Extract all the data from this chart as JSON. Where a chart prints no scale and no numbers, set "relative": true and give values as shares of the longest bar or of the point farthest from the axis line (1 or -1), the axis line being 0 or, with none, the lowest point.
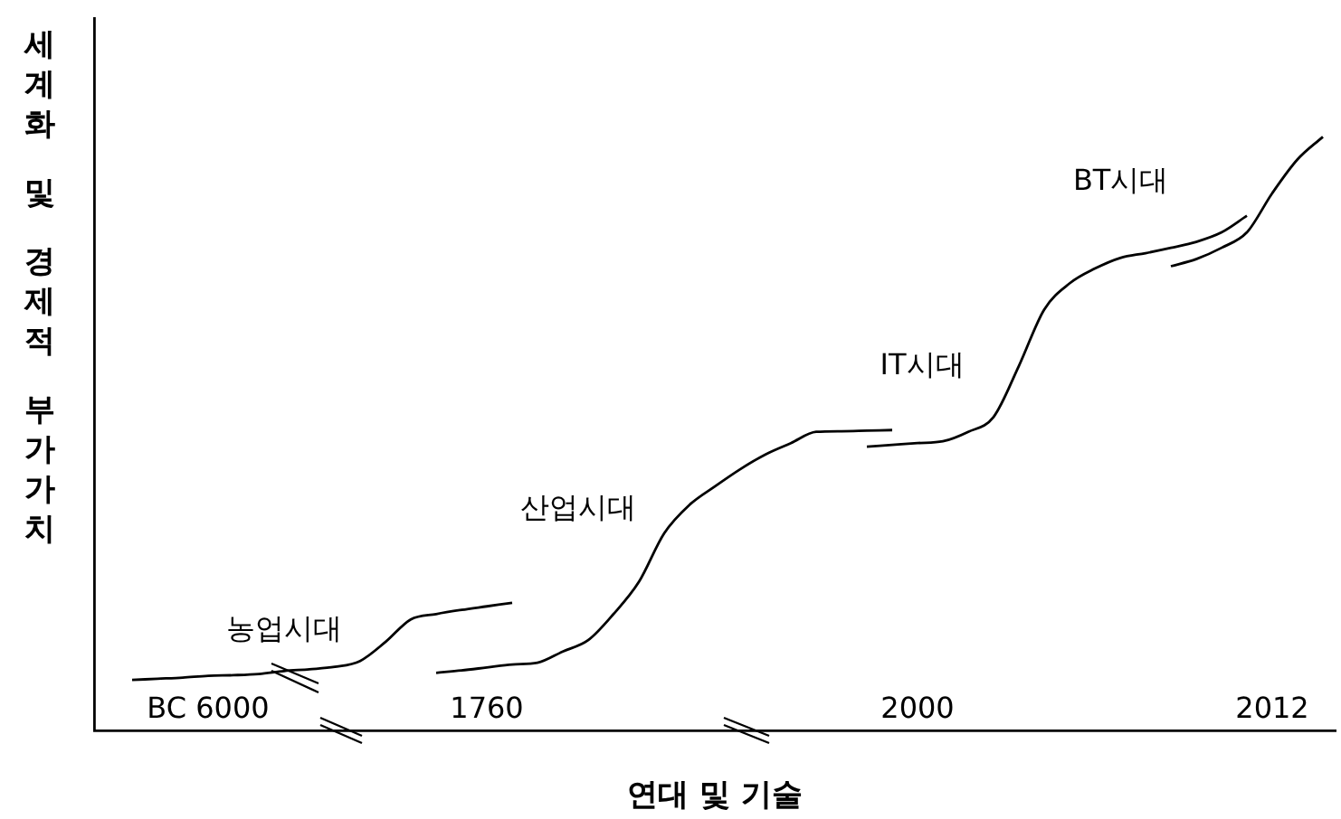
{
  "chart_data": {
    "type": "line",
    "relative": true,
    "xlabel": "연대 및 기술",
    "ylabel": "세계화 및 경제적 부가가치",
    "categories": [
      null,
      null,
      null,
      null,
      "BC 6000",
      null,
      null,
      null,
      null,
      null,
      null,
      null,
      null,
      null,
      null,
      "1760",
      null,
      null,
      null,
      null,
      null,
      null,
      null,
      null,
      null,
      null,
      null,
      null,
      null,
      null,
      null,
      null,
      "2000",
      null,
      null,
      null,
      null,
      null,
      null,
      null,
      null,
      null,
      null,
      null,
      null,
      null,
      "2012",
      null,
      null
    ],
    "series": [
      {
        "color": "#000000",
        "values": [
          null,
          0.085,
          0.087,
          0.089,
          0.092,
          0.093,
          0.095,
          0.1,
          0.103,
          0.107,
          0.117,
          0.149,
          0.187,
          0.196,
          0.203,
          0.209,
          0.215,
          null,
          null,
          null,
          null,
          null,
          null,
          null,
          null,
          null,
          null,
          null,
          null,
          null,
          null,
          null,
          null,
          null,
          null,
          null,
          null,
          null,
          null,
          null,
          null,
          null,
          null,
          null,
          null,
          null,
          null,
          null,
          null
        ]
      },
      {
        "color": "#000000",
        "values": [
          null,
          null,
          null,
          null,
          null,
          null,
          null,
          null,
          null,
          null,
          null,
          null,
          null,
          0.097,
          0.101,
          0.106,
          0.111,
          0.114,
          0.133,
          0.152,
          0.196,
          0.25,
          0.332,
          0.38,
          0.411,
          0.44,
          0.465,
          0.484,
          0.503,
          0.504,
          0.505,
          0.506,
          null,
          null,
          null,
          null,
          null,
          null,
          null,
          null,
          null,
          null,
          null,
          null,
          null,
          null,
          null,
          null,
          null
        ]
      },
      {
        "color": "#000000",
        "values": [
          null,
          null,
          null,
          null,
          null,
          null,
          null,
          null,
          null,
          null,
          null,
          null,
          null,
          null,
          null,
          null,
          null,
          null,
          null,
          null,
          null,
          null,
          null,
          null,
          null,
          null,
          null,
          null,
          null,
          null,
          0.478,
          0.481,
          0.484,
          0.487,
          0.503,
          0.528,
          0.614,
          0.709,
          0.753,
          0.778,
          0.796,
          0.804,
          0.813,
          0.823,
          0.839,
          0.867,
          null,
          null,
          null
        ]
      },
      {
        "color": "#000000",
        "values": [
          null,
          null,
          null,
          null,
          null,
          null,
          null,
          null,
          null,
          null,
          null,
          null,
          null,
          null,
          null,
          null,
          null,
          null,
          null,
          null,
          null,
          null,
          null,
          null,
          null,
          null,
          null,
          null,
          null,
          null,
          null,
          null,
          null,
          null,
          null,
          null,
          null,
          null,
          null,
          null,
          null,
          null,
          0.782,
          0.794,
          0.813,
          0.839,
          0.905,
          0.962,
          1
        ]
      }
    ],
    "annotations": [
      "농업시대",
      "산업시대",
      "IT시대",
      "BT시대"
    ],
    "grid": false,
    "legend": false,
    "marker": "none",
    "line_style": "solid"
  }
}
